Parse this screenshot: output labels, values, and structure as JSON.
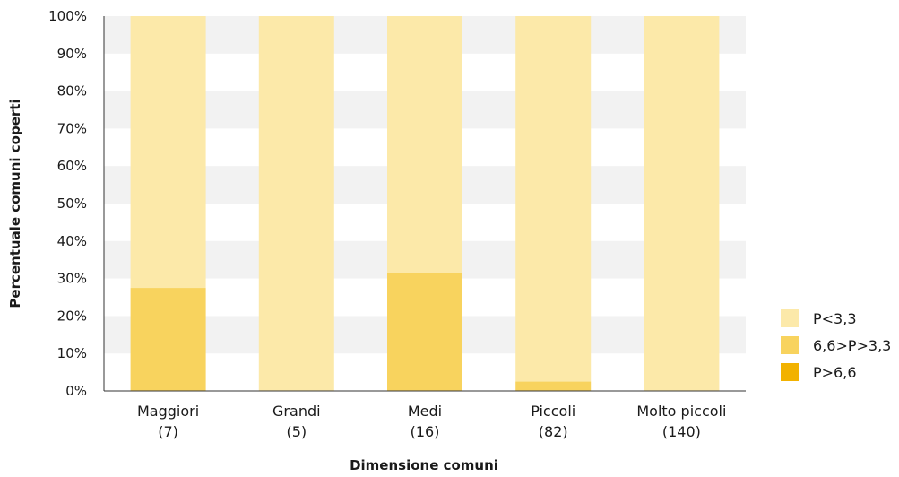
{
  "chart_data": {
    "type": "bar",
    "stacked": true,
    "title": "",
    "xlabel": "Dimensione comuni",
    "ylabel": "Percentuale comuni coperti",
    "ylim": [
      0,
      100
    ],
    "yticks": [
      "0%",
      "10%",
      "20%",
      "30%",
      "40%",
      "50%",
      "60%",
      "70%",
      "80%",
      "90%",
      "100%"
    ],
    "categories": [
      {
        "name": "Maggiori",
        "count": "(7)"
      },
      {
        "name": "Grandi",
        "count": "(5)"
      },
      {
        "name": "Medi",
        "count": "(16)"
      },
      {
        "name": "Piccoli",
        "count": "(82)"
      },
      {
        "name": "Molto piccoli",
        "count": "(140)"
      }
    ],
    "series": [
      {
        "name": "P>6,6",
        "color": "#f2b200",
        "values": [
          0,
          0,
          0,
          0,
          0
        ]
      },
      {
        "name": "6,6>P>3,3",
        "color": "#f8d35e",
        "values": [
          27.5,
          0,
          31.5,
          2.5,
          0
        ]
      },
      {
        "name": "P<3,3",
        "color": "#fce9a9",
        "values": [
          72.5,
          100,
          68.5,
          97.5,
          100
        ]
      }
    ],
    "legend": {
      "position": "bottom-right",
      "items": [
        {
          "label": "P<3,3",
          "color": "#fce9a9"
        },
        {
          "label": "6,6>P>3,3",
          "color": "#f8d35e"
        },
        {
          "label": "P>6,6",
          "color": "#f2b200"
        }
      ]
    },
    "grid": "alternating horizontal bands",
    "band_color": "#f2f2f2"
  }
}
